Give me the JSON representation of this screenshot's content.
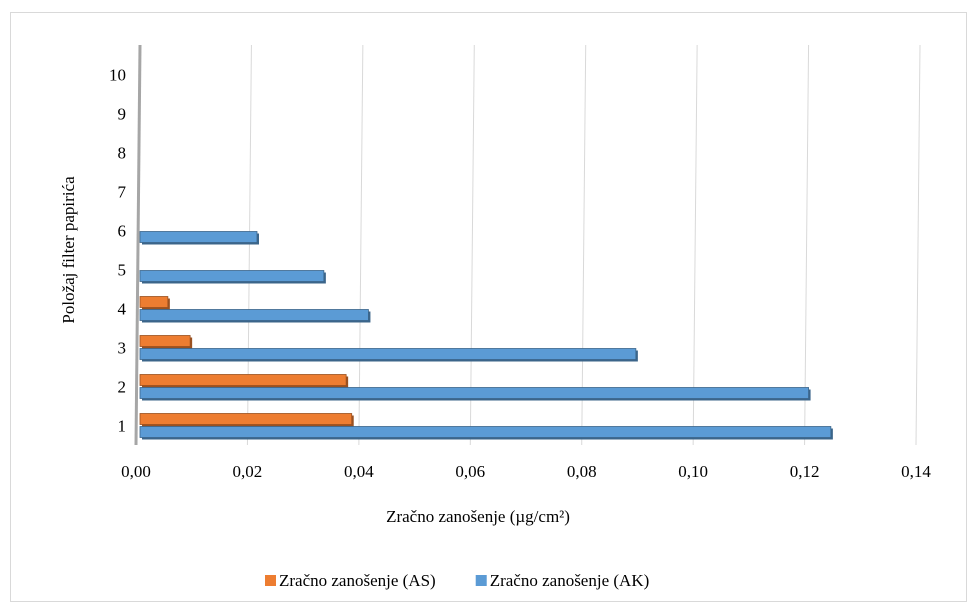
{
  "chart_data": {
    "type": "barh",
    "xlabel": "Zračno zanošenje (µg/cm²)",
    "ylabel": "Položaj filter papirića",
    "categories": [
      "1",
      "2",
      "3",
      "4",
      "5",
      "6",
      "7",
      "8",
      "9",
      "10"
    ],
    "series": [
      {
        "name": "Zračno zanošenje (AS)",
        "color": "#ed7d31",
        "values": [
          0.038,
          0.037,
          0.009,
          0.005,
          0,
          0,
          0,
          0,
          0,
          0
        ]
      },
      {
        "name": "Zračno zanošenje (AK)",
        "color": "#5b9bd5",
        "values": [
          0.124,
          0.12,
          0.089,
          0.041,
          0.033,
          0.021,
          0,
          0,
          0,
          0
        ]
      }
    ],
    "xlim": [
      0,
      0.14
    ],
    "xticks": [
      {
        "value": 0,
        "label": "0,00"
      },
      {
        "value": 0.02,
        "label": "0,02"
      },
      {
        "value": 0.04,
        "label": "0,04"
      },
      {
        "value": 0.06,
        "label": "0,06"
      },
      {
        "value": 0.08,
        "label": "0,08"
      },
      {
        "value": 0.1,
        "label": "0,10"
      },
      {
        "value": 0.12,
        "label": "0,12"
      },
      {
        "value": 0.14,
        "label": "0,14"
      }
    ],
    "grid": true,
    "legend": "bottom"
  }
}
